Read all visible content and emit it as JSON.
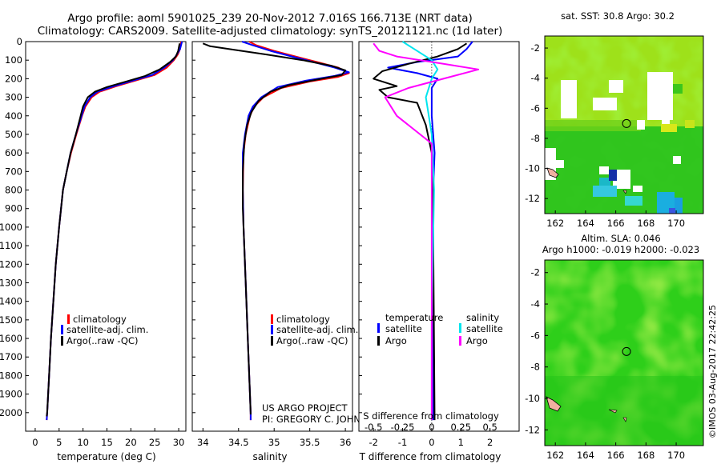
{
  "header": {
    "line1": "Argo profile: aoml 5901025_239 20-Nov-2012 7.016S 166.713E (NRT data)",
    "line2": "Climatology: CARS2009. Satellite-adjusted climatology: synTS_20121121.nc (1d later)"
  },
  "credit": {
    "project": "US ARGO PROJECT",
    "pi": "PI: GREGORY C. JOHNSON"
  },
  "timestamp": "©IMOS 03-Aug-2017 22:42:25",
  "colors": {
    "climatology": "#ff0000",
    "satellite": "#0000ff",
    "argo": "#000000",
    "sal_satellite": "#00e5ee",
    "sal_argo": "#ff00ff"
  },
  "chart_data": [
    {
      "type": "line",
      "id": "temperature",
      "xlabel": "temperature (deg C)",
      "xlim": [
        -2,
        31.5
      ],
      "ylim": [
        2100,
        0
      ],
      "xticks": [
        0,
        5,
        10,
        15,
        20,
        25,
        30
      ],
      "yticks": [
        0,
        100,
        200,
        300,
        400,
        500,
        600,
        700,
        800,
        900,
        1000,
        1100,
        1200,
        1300,
        1400,
        1500,
        1600,
        1700,
        1800,
        1900,
        2000
      ],
      "legend": [
        "climatology",
        "satellite-adj. clim.",
        "Argo(..raw -QC)"
      ],
      "series": [
        {
          "name": "climatology",
          "color": "#ff0000",
          "points": [
            [
              30.5,
              0
            ],
            [
              30.3,
              40
            ],
            [
              29.8,
              70
            ],
            [
              29,
              100
            ],
            [
              27.5,
              140
            ],
            [
              25,
              180
            ],
            [
              21,
              210
            ],
            [
              17,
              240
            ],
            [
              13.5,
              270
            ],
            [
              11.8,
              300
            ],
            [
              10.5,
              350
            ],
            [
              9.8,
              400
            ],
            [
              8.6,
              500
            ],
            [
              7.5,
              600
            ],
            [
              6.6,
              700
            ],
            [
              5.8,
              800
            ],
            [
              5,
              1000
            ],
            [
              4.3,
              1200
            ],
            [
              3.8,
              1400
            ],
            [
              3.3,
              1600
            ],
            [
              2.9,
              1800
            ],
            [
              2.5,
              2000
            ],
            [
              2.4,
              2040
            ]
          ]
        },
        {
          "name": "satellite-adj. clim.",
          "color": "#0000ff",
          "points": [
            [
              30.7,
              0
            ],
            [
              30.3,
              40
            ],
            [
              29.6,
              70
            ],
            [
              28.8,
              100
            ],
            [
              27,
              140
            ],
            [
              24.5,
              180
            ],
            [
              20.5,
              210
            ],
            [
              16.5,
              240
            ],
            [
              13,
              270
            ],
            [
              11.5,
              300
            ],
            [
              10.3,
              350
            ],
            [
              9.7,
              400
            ],
            [
              8.5,
              500
            ],
            [
              7.4,
              600
            ],
            [
              6.6,
              700
            ],
            [
              5.8,
              800
            ],
            [
              5,
              1000
            ],
            [
              4.3,
              1200
            ],
            [
              3.8,
              1400
            ],
            [
              3.3,
              1600
            ],
            [
              2.9,
              1800
            ],
            [
              2.5,
              2000
            ],
            [
              2.4,
              2040
            ]
          ]
        },
        {
          "name": "Argo(..raw -QC)",
          "color": "#000000",
          "points": [
            [
              30.2,
              10
            ],
            [
              29.9,
              50
            ],
            [
              29.4,
              80
            ],
            [
              28.2,
              110
            ],
            [
              26,
              150
            ],
            [
              23,
              185
            ],
            [
              19,
              215
            ],
            [
              15,
              245
            ],
            [
              12.5,
              270
            ],
            [
              11,
              300
            ],
            [
              10,
              350
            ],
            [
              9.5,
              400
            ],
            [
              8.5,
              500
            ],
            [
              7.4,
              600
            ],
            [
              6.6,
              700
            ],
            [
              5.8,
              800
            ],
            [
              5,
              1000
            ],
            [
              4.3,
              1200
            ],
            [
              3.8,
              1400
            ],
            [
              3.3,
              1600
            ],
            [
              2.9,
              1800
            ],
            [
              2.5,
              2000
            ],
            [
              2.4,
              2020
            ]
          ]
        }
      ]
    },
    {
      "type": "line",
      "id": "salinity",
      "xlabel": "salinity",
      "xlim": [
        33.85,
        36.1
      ],
      "ylim": [
        2100,
        0
      ],
      "xticks": [
        34,
        34.5,
        35,
        35.5,
        36
      ],
      "legend": [
        "climatology",
        "satellite-adj. clim.",
        "Argo(..raw -QC)"
      ],
      "series": [
        {
          "name": "climatology",
          "color": "#ff0000",
          "points": [
            [
              34.65,
              0
            ],
            [
              34.75,
              20
            ],
            [
              35,
              50
            ],
            [
              35.3,
              80
            ],
            [
              35.6,
              110
            ],
            [
              35.9,
              140
            ],
            [
              36.05,
              170
            ],
            [
              35.9,
              190
            ],
            [
              35.5,
              215
            ],
            [
              35.1,
              250
            ],
            [
              34.85,
              300
            ],
            [
              34.72,
              350
            ],
            [
              34.66,
              400
            ],
            [
              34.6,
              500
            ],
            [
              34.57,
              600
            ],
            [
              34.56,
              800
            ],
            [
              34.57,
              1000
            ],
            [
              34.59,
              1200
            ],
            [
              34.61,
              1400
            ],
            [
              34.63,
              1600
            ],
            [
              34.65,
              1800
            ],
            [
              34.67,
              2000
            ],
            [
              34.67,
              2040
            ]
          ]
        },
        {
          "name": "satellite-adj. clim.",
          "color": "#0000ff",
          "points": [
            [
              34.55,
              0
            ],
            [
              34.7,
              20
            ],
            [
              34.95,
              50
            ],
            [
              35.25,
              80
            ],
            [
              35.55,
              110
            ],
            [
              35.85,
              140
            ],
            [
              36.05,
              165
            ],
            [
              35.85,
              185
            ],
            [
              35.45,
              210
            ],
            [
              35.05,
              245
            ],
            [
              34.82,
              300
            ],
            [
              34.7,
              350
            ],
            [
              34.64,
              400
            ],
            [
              34.59,
              500
            ],
            [
              34.56,
              600
            ],
            [
              34.56,
              800
            ],
            [
              34.57,
              1000
            ],
            [
              34.59,
              1200
            ],
            [
              34.61,
              1400
            ],
            [
              34.63,
              1600
            ],
            [
              34.65,
              1800
            ],
            [
              34.67,
              2000
            ],
            [
              34.67,
              2040
            ]
          ]
        },
        {
          "name": "Argo(..raw -QC)",
          "color": "#000000",
          "points": [
            [
              34.0,
              10
            ],
            [
              34.1,
              25
            ],
            [
              34.45,
              45
            ],
            [
              34.9,
              70
            ],
            [
              35.4,
              100
            ],
            [
              35.8,
              130
            ],
            [
              36.0,
              155
            ],
            [
              35.95,
              180
            ],
            [
              35.6,
              205
            ],
            [
              35.2,
              235
            ],
            [
              34.95,
              270
            ],
            [
              34.78,
              320
            ],
            [
              34.68,
              380
            ],
            [
              34.62,
              450
            ],
            [
              34.58,
              550
            ],
            [
              34.56,
              700
            ],
            [
              34.56,
              900
            ],
            [
              34.58,
              1100
            ],
            [
              34.6,
              1300
            ],
            [
              34.62,
              1500
            ],
            [
              34.64,
              1700
            ],
            [
              34.66,
              1900
            ],
            [
              34.67,
              2010
            ]
          ]
        }
      ]
    },
    {
      "type": "line",
      "id": "difference",
      "xlabel_top": "S difference from climatology",
      "xlabel": "T difference from climatology",
      "t_xlim": [
        -2.5,
        3
      ],
      "t_xticks": [
        -2,
        -1,
        0,
        1,
        2
      ],
      "s_ticks": [
        -0.5,
        -0.25,
        0,
        0.25,
        0.5
      ],
      "s_scale": 4,
      "ylim": [
        2100,
        0
      ],
      "legend_temperature": [
        "temperature",
        "satellite",
        "Argo"
      ],
      "legend_salinity": [
        "salinity",
        "satellite",
        "Argo"
      ],
      "series": [
        {
          "name": "T satellite",
          "color": "#0000ff",
          "points": [
            [
              1.4,
              0
            ],
            [
              1.2,
              40
            ],
            [
              0.9,
              80
            ],
            [
              -0.5,
              110
            ],
            [
              -1.5,
              140
            ],
            [
              -0.5,
              170
            ],
            [
              0.2,
              200
            ],
            [
              0.0,
              250
            ],
            [
              0.0,
              400
            ],
            [
              0.1,
              600
            ],
            [
              0.05,
              800
            ],
            [
              0.05,
              1000
            ],
            [
              0.05,
              1500
            ],
            [
              0.05,
              2040
            ]
          ]
        },
        {
          "name": "T Argo",
          "color": "#000000",
          "points": [
            [
              1.2,
              10
            ],
            [
              0.9,
              40
            ],
            [
              0.2,
              80
            ],
            [
              -0.8,
              120
            ],
            [
              -1.7,
              160
            ],
            [
              -2.0,
              200
            ],
            [
              -1.2,
              240
            ],
            [
              -1.8,
              260
            ],
            [
              -1.5,
              300
            ],
            [
              -0.5,
              330
            ],
            [
              -0.2,
              450
            ],
            [
              0,
              600
            ],
            [
              0.05,
              1000
            ],
            [
              0.1,
              2040
            ]
          ]
        },
        {
          "name": "S satellite",
          "color": "#00e5ee",
          "points": [
            [
              -0.25,
              0
            ],
            [
              -0.15,
              40
            ],
            [
              0,
              100
            ],
            [
              0.05,
              150
            ],
            [
              0,
              200
            ],
            [
              -0.05,
              300
            ],
            [
              0,
              500
            ],
            [
              0.02,
              800
            ],
            [
              0.0,
              1500
            ],
            [
              0,
              2040
            ]
          ]
        },
        {
          "name": "S Argo",
          "color": "#ff00ff",
          "points": [
            [
              -0.5,
              10
            ],
            [
              -0.45,
              50
            ],
            [
              -0.3,
              80
            ],
            [
              0.1,
              120
            ],
            [
              0.4,
              150
            ],
            [
              0.1,
              200
            ],
            [
              -0.2,
              250
            ],
            [
              -0.4,
              300
            ],
            [
              -0.3,
              400
            ],
            [
              0,
              550
            ],
            [
              0,
              2040
            ]
          ]
        }
      ]
    },
    {
      "type": "heatmap",
      "id": "sst-map",
      "title": "sat. SST: 30.8 Argo: 30.2",
      "xlim": [
        161.3,
        171.8
      ],
      "ylim": [
        -13,
        -1.2
      ],
      "xticks": [
        162,
        164,
        166,
        168,
        170
      ],
      "yticks": [
        -2,
        -4,
        -6,
        -8,
        -10,
        -12
      ],
      "marker": [
        166.713,
        -7.016
      ]
    },
    {
      "type": "heatmap",
      "id": "sla-map",
      "title": "Altim. SLA: 0.046",
      "subtitle": "Argo h1000: -0.019 h2000: -0.023",
      "xlim": [
        161.3,
        171.8
      ],
      "ylim": [
        -13,
        -1.2
      ],
      "xticks": [
        162,
        164,
        166,
        168,
        170
      ],
      "yticks": [
        -2,
        -4,
        -6,
        -8,
        -10,
        -12
      ],
      "marker": [
        166.713,
        -7.016
      ]
    }
  ]
}
